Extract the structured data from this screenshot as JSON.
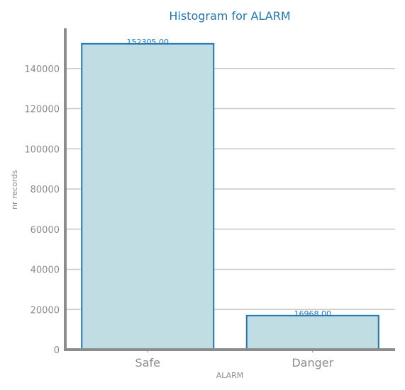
{
  "chart_data": {
    "type": "bar",
    "title": "Histogram for ALARM",
    "xlabel": "ALARM",
    "ylabel": "nr records",
    "categories": [
      "Safe",
      "Danger"
    ],
    "values": [
      152305.0,
      16968.0
    ],
    "data_labels": [
      "152305.00",
      "16968.00"
    ],
    "ylim": [
      0,
      160000
    ],
    "yticks": [
      0,
      20000,
      40000,
      60000,
      80000,
      100000,
      120000,
      140000
    ],
    "ytick_labels": [
      "0",
      "20000",
      "40000",
      "60000",
      "80000",
      "100000",
      "120000",
      "140000"
    ],
    "grid": "horizontal",
    "legend": "none",
    "colors": {
      "bar_fill": "#bfdde2",
      "bar_edge": "#1f77b4",
      "grid": "#c8c8c8",
      "axis": "#8c8c8c",
      "text": "#8c8c8c",
      "accent": "#1f77b4"
    }
  }
}
